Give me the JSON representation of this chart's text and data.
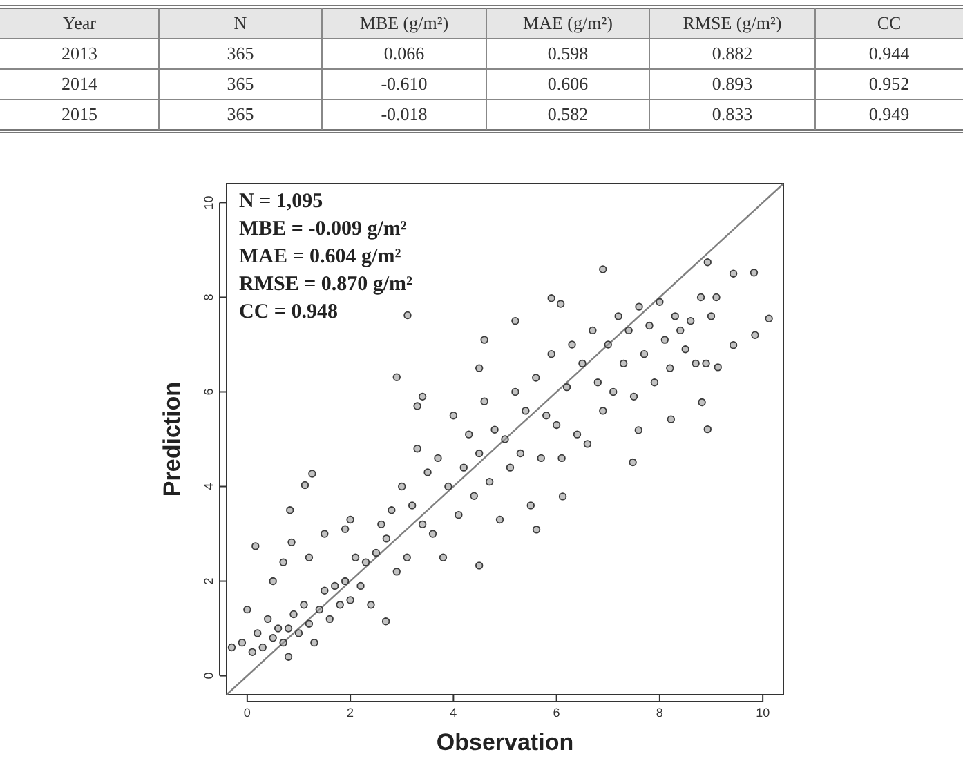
{
  "chart_data": [
    {
      "type": "other",
      "ylabel": "Year",
      "categories": [
        "N",
        "MBE (g/m²)",
        "MAE (g/m²)",
        "RMSE (g/m²)",
        "CC"
      ],
      "y_categories": [
        "2013",
        "2014",
        "2015"
      ],
      "cells": [
        [
          "365",
          "0.066",
          "0.598",
          "0.882",
          "0.944"
        ],
        [
          "365",
          "-0.610",
          "0.606",
          "0.893",
          "0.952"
        ],
        [
          "365",
          "-0.018",
          "0.582",
          "0.833",
          "0.949"
        ]
      ]
    },
    {
      "type": "scatter",
      "xlabel": "Observation",
      "ylabel": "Prediction",
      "xlim": [
        -0.4,
        10.4
      ],
      "ylim": [
        -0.4,
        10.4
      ],
      "xticks": [
        0,
        2,
        4,
        6,
        8,
        10
      ],
      "yticks": [
        0,
        2,
        4,
        6,
        8,
        10
      ],
      "annotations": [
        "N = 1,095",
        "MBE = -0.009 g/m²",
        "MAE = 0.604 g/m²",
        "RMSE = 0.870 g/m²",
        "CC = 0.948"
      ],
      "series": [
        {
          "type": "scatter",
          "marker": "circle",
          "color": "#3a3a3a",
          "x": [
            -0.3,
            -0.1,
            0,
            0.1,
            0.2,
            0.3,
            0.4,
            0.5,
            0.6,
            0.7,
            0.8,
            0.8,
            0.9,
            1,
            1.1,
            1.2,
            1.3,
            1.4,
            1.5,
            1.6,
            1.7,
            1.8,
            1.9,
            2,
            2.1,
            2.2,
            0.5,
            0.7,
            1.2,
            1.5,
            1.9,
            2,
            2.3,
            2.4,
            2.5,
            2.6,
            2.7,
            2.8,
            2.9,
            3,
            3.1,
            3.2,
            3.3,
            3.4,
            3.5,
            3.6,
            3.7,
            3.8,
            3.9,
            4,
            4.1,
            4.2,
            4.3,
            4.4,
            4.5,
            4.6,
            4.7,
            4.8,
            4.9,
            5,
            5.1,
            5.2,
            5.3,
            5.4,
            5.5,
            5.6,
            5.7,
            5.8,
            5.9,
            6,
            6.1,
            6.2,
            6.3,
            6.4,
            6.5,
            6.6,
            6.7,
            6.8,
            6.9,
            7,
            7.1,
            7.2,
            7.3,
            7.4,
            7.5,
            7.6,
            7.7,
            7.8,
            7.9,
            8,
            8.1,
            8.2,
            8.3,
            8.4,
            8.5,
            8.6,
            8.7,
            8.8,
            8.9,
            9,
            9.1,
            3.4,
            4.5,
            5.2,
            4.6,
            3.3,
            3.11,
            2.9,
            1.12,
            1.26,
            0.83,
            0.16,
            0.86,
            2.69,
            4.5,
            5.61,
            6.12,
            7.48,
            7.59,
            8.93,
            8.22,
            10.12,
            9.83,
            9.43,
            8.93,
            6.9,
            5.9,
            6.08,
            9.43,
            9.85,
            9.13,
            8.82
          ],
          "values": [
            0.6,
            0.7,
            1.4,
            0.5,
            0.9,
            0.6,
            1.2,
            0.8,
            1,
            0.7,
            1,
            0.4,
            1.3,
            0.9,
            1.5,
            1.1,
            0.7,
            1.4,
            1.8,
            1.2,
            1.9,
            1.5,
            2,
            1.6,
            2.5,
            1.9,
            2,
            2.4,
            2.5,
            3,
            3.1,
            3.3,
            2.4,
            1.5,
            2.6,
            3.2,
            2.9,
            3.5,
            2.2,
            4,
            2.5,
            3.6,
            4.8,
            3.2,
            4.3,
            3,
            4.6,
            2.5,
            4,
            5.5,
            3.4,
            4.4,
            5.1,
            3.8,
            4.7,
            5.8,
            4.1,
            5.2,
            3.3,
            5,
            4.4,
            6,
            4.7,
            5.6,
            3.6,
            6.3,
            4.6,
            5.5,
            6.8,
            5.3,
            4.6,
            6.1,
            7,
            5.1,
            6.6,
            4.9,
            7.3,
            6.2,
            5.6,
            7,
            6,
            7.6,
            6.6,
            7.3,
            5.9,
            7.8,
            6.8,
            7.4,
            6.2,
            7.9,
            7.1,
            6.5,
            7.6,
            7.3,
            6.9,
            7.5,
            6.6,
            8,
            6.6,
            7.6,
            8,
            5.9,
            6.5,
            7.5,
            7.1,
            5.7,
            7.62,
            6.31,
            4.03,
            4.27,
            3.5,
            2.74,
            2.82,
            1.15,
            2.33,
            3.09,
            3.79,
            4.51,
            5.19,
            5.21,
            5.42,
            7.55,
            8.52,
            8.5,
            8.74,
            8.59,
            7.98,
            7.86,
            6.99,
            7.2,
            6.52,
            5.78
          ]
        },
        {
          "type": "line",
          "color": "#808080",
          "x": [
            -0.4,
            10.4
          ],
          "values": [
            -0.4,
            10.4
          ]
        }
      ]
    }
  ]
}
